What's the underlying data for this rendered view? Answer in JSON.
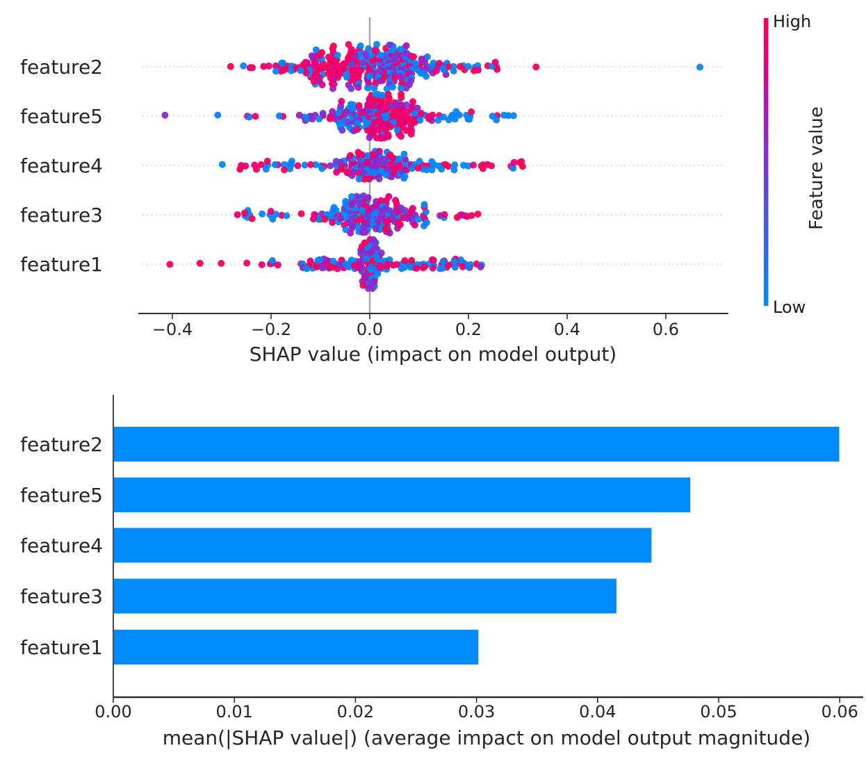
{
  "figure": {
    "background": "#ffffff",
    "text_color": "#262626",
    "spine_color": "#2e2e2e",
    "grid_color": "#cfcfcf",
    "zero_line_color": "#a6a6a6"
  },
  "chart_data": [
    {
      "type": "beeswarm",
      "title": "",
      "xlabel": "SHAP value (impact on model output)",
      "features": [
        "feature2",
        "feature5",
        "feature4",
        "feature3",
        "feature1"
      ],
      "x_ticks": [
        -0.4,
        -0.2,
        0.0,
        0.2,
        0.4,
        0.6
      ],
      "x_tick_labels": [
        "−0.4",
        "−0.2",
        "0.0",
        "0.2",
        "0.4",
        "0.6"
      ],
      "xlim": [
        -0.469,
        0.727
      ],
      "grid": true,
      "dot_radius": 5,
      "seed": 1337,
      "colorbar": {
        "label": "Feature value",
        "high_label": "High",
        "low_label": "Low",
        "high_color": "#ff0051",
        "low_color": "#008bfb"
      },
      "swarms": [
        {
          "feature": "feature2",
          "max_spread": 33,
          "blobs": [
            {
              "mu": -0.065,
              "sd": 0.048,
              "n": 130,
              "colors": {
                "red": 0.72,
                "purple": 0.13,
                "blue": 0.15
              }
            },
            {
              "mu": 0.055,
              "sd": 0.042,
              "n": 150,
              "colors": {
                "blue": 0.4,
                "purple": 0.4,
                "red": 0.2
              }
            },
            {
              "lo": -0.28,
              "hi": -0.12,
              "n": 14,
              "cap": 7,
              "colors": {
                "red": 0.75,
                "blue": 0.25
              }
            },
            {
              "lo": 0.12,
              "hi": 0.26,
              "n": 18,
              "cap": 7,
              "colors": {
                "red": 0.5,
                "blue": 0.5
              }
            }
          ],
          "outliers": [
            {
              "x": -0.282,
              "color": "red"
            },
            {
              "x": -0.256,
              "color": "blue"
            },
            {
              "x": 0.337,
              "color": "red"
            },
            {
              "x": 0.669,
              "color": "blue"
            }
          ]
        },
        {
          "feature": "feature5",
          "max_spread": 32,
          "blobs": [
            {
              "mu": -0.025,
              "sd": 0.04,
              "n": 90,
              "colors": {
                "blue": 0.45,
                "purple": 0.4,
                "red": 0.15
              }
            },
            {
              "mu": 0.045,
              "sd": 0.033,
              "n": 120,
              "colors": {
                "red": 0.78,
                "purple": 0.12,
                "blue": 0.1
              }
            },
            {
              "lo": -0.25,
              "hi": -0.1,
              "n": 10,
              "cap": 7,
              "colors": {
                "blue": 0.5,
                "red": 0.35,
                "purple": 0.15
              }
            },
            {
              "lo": 0.1,
              "hi": 0.31,
              "n": 22,
              "cap": 7,
              "colors": {
                "blue": 0.8,
                "red": 0.2
              }
            }
          ],
          "outliers": [
            {
              "x": -0.415,
              "color": "purple"
            },
            {
              "x": -0.308,
              "color": "blue"
            }
          ]
        },
        {
          "feature": "feature4",
          "max_spread": 21,
          "blobs": [
            {
              "mu": 0.01,
              "sd": 0.045,
              "n": 140,
              "colors": {
                "purple": 0.3,
                "blue": 0.35,
                "red": 0.35
              }
            },
            {
              "lo": -0.3,
              "hi": -0.22,
              "n": 7,
              "cap": 6,
              "colors": {
                "red": 0.8,
                "blue": 0.2
              }
            },
            {
              "lo": -0.21,
              "hi": -0.09,
              "n": 16,
              "cap": 7,
              "colors": {
                "blue": 0.5,
                "red": 0.5
              }
            },
            {
              "lo": 0.09,
              "hi": 0.2,
              "n": 16,
              "cap": 7,
              "colors": {
                "blue": 0.6,
                "red": 0.4
              }
            },
            {
              "lo": 0.2,
              "hi": 0.31,
              "n": 12,
              "cap": 6,
              "colors": {
                "red": 0.85,
                "blue": 0.15
              }
            }
          ],
          "outliers": []
        },
        {
          "feature": "feature3",
          "max_spread": 28,
          "blobs": [
            {
              "mu": -0.015,
              "sd": 0.035,
              "n": 130,
              "colors": {
                "purple": 0.4,
                "blue": 0.4,
                "red": 0.2
              }
            },
            {
              "mu": 0.07,
              "sd": 0.04,
              "n": 45,
              "colors": {
                "red": 0.5,
                "purple": 0.3,
                "blue": 0.2
              }
            },
            {
              "lo": -0.27,
              "hi": -0.08,
              "n": 22,
              "cap": 7,
              "colors": {
                "blue": 0.5,
                "red": 0.5
              }
            },
            {
              "lo": 0.15,
              "hi": 0.22,
              "n": 8,
              "cap": 6,
              "colors": {
                "red": 0.6,
                "purple": 0.4
              }
            }
          ],
          "outliers": []
        },
        {
          "feature": "feature1",
          "max_spread": 36,
          "blobs": [
            {
              "mu": 0.0,
              "sd": 0.013,
              "n": 90,
              "colors": {
                "purple": 0.35,
                "blue": 0.35,
                "red": 0.3
              }
            },
            {
              "lo": -0.14,
              "hi": 0.23,
              "n": 110,
              "cap": 8,
              "colors": {
                "blue": 0.45,
                "red": 0.45,
                "purple": 0.1
              }
            },
            {
              "lo": -0.22,
              "hi": -0.14,
              "n": 6,
              "cap": 6,
              "colors": {
                "red": 0.7,
                "blue": 0.3
              }
            }
          ],
          "outliers": [
            {
              "x": -0.405,
              "color": "red"
            },
            {
              "x": -0.344,
              "color": "red"
            },
            {
              "x": -0.301,
              "color": "red"
            },
            {
              "x": -0.249,
              "color": "red"
            }
          ]
        }
      ]
    },
    {
      "type": "bar",
      "title": "",
      "xlabel": "mean(|SHAP value|) (average impact on model output magnitude)",
      "categories": [
        "feature2",
        "feature5",
        "feature4",
        "feature3",
        "feature1"
      ],
      "values": [
        0.0599,
        0.0476,
        0.0444,
        0.0415,
        0.0301
      ],
      "x_ticks": [
        0.0,
        0.01,
        0.02,
        0.03,
        0.04,
        0.05,
        0.06
      ],
      "x_tick_labels": [
        "0.00",
        "0.01",
        "0.02",
        "0.03",
        "0.04",
        "0.05",
        "0.06"
      ],
      "xlim": [
        0,
        0.062
      ],
      "bar_color": "#008bfb",
      "grid": false,
      "legend": null
    }
  ]
}
